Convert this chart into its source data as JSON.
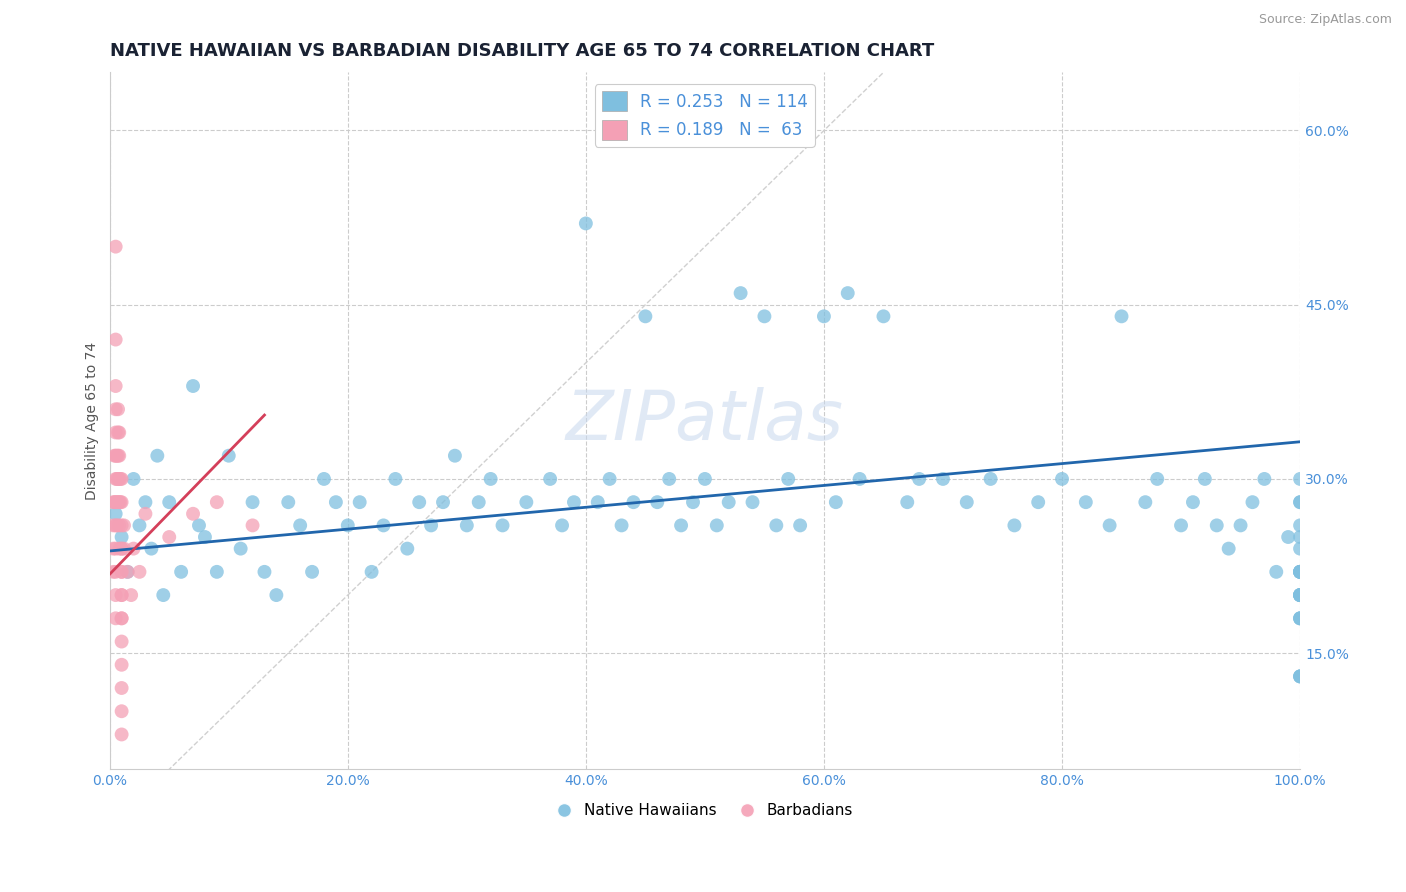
{
  "title": "NATIVE HAWAIIAN VS BARBADIAN DISABILITY AGE 65 TO 74 CORRELATION CHART",
  "source_text": "Source: ZipAtlas.com",
  "ylabel": "Disability Age 65 to 74",
  "watermark_zip": "ZIP",
  "watermark_atlas": "atlas",
  "legend_r1": "R = 0.253",
  "legend_n1": "N = 114",
  "legend_r2": "R = 0.189",
  "legend_n2": "N =  63",
  "legend_label1": "Native Hawaiians",
  "legend_label2": "Barbadians",
  "xlim": [
    0.0,
    1.0
  ],
  "ylim": [
    0.05,
    0.65
  ],
  "xticks": [
    0.0,
    0.2,
    0.4,
    0.6,
    0.8,
    1.0
  ],
  "xticklabels": [
    "0.0%",
    "20.0%",
    "40.0%",
    "60.0%",
    "80.0%",
    "100.0%"
  ],
  "yticks": [
    0.15,
    0.3,
    0.45,
    0.6
  ],
  "yticklabels": [
    "15.0%",
    "30.0%",
    "45.0%",
    "60.0%"
  ],
  "blue_color": "#7fbfdf",
  "pink_color": "#f4a0b5",
  "blue_line_color": "#2166ac",
  "pink_line_color": "#d43f5a",
  "diagonal_color": "#cccccc",
  "grid_color": "#cccccc",
  "title_color": "#1a2233",
  "source_color": "#999999",
  "axis_label_color": "#555555",
  "tick_label_color": "#4a90d9",
  "title_fontsize": 13,
  "axis_fontsize": 10,
  "tick_fontsize": 10,
  "blue_x": [
    0.005,
    0.01,
    0.015,
    0.02,
    0.025,
    0.03,
    0.035,
    0.04,
    0.045,
    0.05,
    0.06,
    0.07,
    0.075,
    0.08,
    0.09,
    0.1,
    0.11,
    0.12,
    0.13,
    0.14,
    0.15,
    0.16,
    0.17,
    0.18,
    0.19,
    0.2,
    0.21,
    0.22,
    0.23,
    0.24,
    0.25,
    0.26,
    0.27,
    0.28,
    0.29,
    0.3,
    0.31,
    0.32,
    0.33,
    0.35,
    0.37,
    0.38,
    0.39,
    0.4,
    0.41,
    0.42,
    0.43,
    0.44,
    0.45,
    0.46,
    0.47,
    0.48,
    0.49,
    0.5,
    0.51,
    0.52,
    0.53,
    0.54,
    0.55,
    0.56,
    0.57,
    0.58,
    0.6,
    0.61,
    0.62,
    0.63,
    0.65,
    0.67,
    0.68,
    0.7,
    0.72,
    0.74,
    0.76,
    0.78,
    0.8,
    0.82,
    0.84,
    0.85,
    0.87,
    0.88,
    0.9,
    0.91,
    0.92,
    0.93,
    0.94,
    0.95,
    0.96,
    0.97,
    0.98,
    0.99,
    1.0,
    1.0,
    1.0,
    1.0,
    1.0,
    1.0,
    1.0,
    1.0,
    1.0,
    1.0,
    1.0,
    1.0,
    1.0,
    1.0,
    1.0,
    1.0,
    1.0,
    1.0,
    1.0,
    1.0,
    1.0,
    1.0,
    1.0,
    1.0
  ],
  "blue_y": [
    0.27,
    0.25,
    0.22,
    0.3,
    0.26,
    0.28,
    0.24,
    0.32,
    0.2,
    0.28,
    0.22,
    0.38,
    0.26,
    0.25,
    0.22,
    0.32,
    0.24,
    0.28,
    0.22,
    0.2,
    0.28,
    0.26,
    0.22,
    0.3,
    0.28,
    0.26,
    0.28,
    0.22,
    0.26,
    0.3,
    0.24,
    0.28,
    0.26,
    0.28,
    0.32,
    0.26,
    0.28,
    0.3,
    0.26,
    0.28,
    0.3,
    0.26,
    0.28,
    0.52,
    0.28,
    0.3,
    0.26,
    0.28,
    0.44,
    0.28,
    0.3,
    0.26,
    0.28,
    0.3,
    0.26,
    0.28,
    0.46,
    0.28,
    0.44,
    0.26,
    0.3,
    0.26,
    0.44,
    0.28,
    0.46,
    0.3,
    0.44,
    0.28,
    0.3,
    0.3,
    0.28,
    0.3,
    0.26,
    0.28,
    0.3,
    0.28,
    0.26,
    0.44,
    0.28,
    0.3,
    0.26,
    0.28,
    0.3,
    0.26,
    0.24,
    0.26,
    0.28,
    0.3,
    0.22,
    0.25,
    0.3,
    0.28,
    0.26,
    0.24,
    0.22,
    0.13,
    0.25,
    0.28,
    0.2,
    0.22,
    0.18,
    0.2,
    0.22,
    0.13,
    0.2,
    0.22,
    0.18,
    0.2,
    0.22,
    0.13,
    0.2,
    0.22,
    0.18,
    0.2
  ],
  "pink_x": [
    0.003,
    0.003,
    0.003,
    0.003,
    0.004,
    0.004,
    0.005,
    0.005,
    0.005,
    0.005,
    0.005,
    0.005,
    0.005,
    0.005,
    0.005,
    0.005,
    0.005,
    0.005,
    0.005,
    0.006,
    0.006,
    0.006,
    0.006,
    0.007,
    0.007,
    0.007,
    0.007,
    0.007,
    0.008,
    0.008,
    0.008,
    0.008,
    0.008,
    0.008,
    0.009,
    0.009,
    0.01,
    0.01,
    0.01,
    0.01,
    0.01,
    0.01,
    0.01,
    0.01,
    0.01,
    0.01,
    0.01,
    0.01,
    0.01,
    0.01,
    0.01,
    0.01,
    0.012,
    0.012,
    0.015,
    0.018,
    0.02,
    0.025,
    0.03,
    0.05,
    0.07,
    0.09,
    0.12
  ],
  "pink_y": [
    0.28,
    0.26,
    0.24,
    0.22,
    0.32,
    0.28,
    0.5,
    0.42,
    0.38,
    0.36,
    0.34,
    0.32,
    0.3,
    0.28,
    0.26,
    0.24,
    0.22,
    0.2,
    0.18,
    0.32,
    0.3,
    0.28,
    0.26,
    0.36,
    0.34,
    0.32,
    0.3,
    0.28,
    0.34,
    0.32,
    0.3,
    0.28,
    0.26,
    0.24,
    0.3,
    0.28,
    0.3,
    0.28,
    0.26,
    0.24,
    0.22,
    0.2,
    0.18,
    0.16,
    0.14,
    0.12,
    0.1,
    0.08,
    0.24,
    0.22,
    0.2,
    0.18,
    0.26,
    0.24,
    0.22,
    0.2,
    0.24,
    0.22,
    0.27,
    0.25,
    0.27,
    0.28,
    0.26
  ],
  "blue_trend_x": [
    0.0,
    1.0
  ],
  "blue_trend_y": [
    0.238,
    0.332
  ],
  "pink_trend_x": [
    0.0,
    0.13
  ],
  "pink_trend_y": [
    0.218,
    0.355
  ]
}
